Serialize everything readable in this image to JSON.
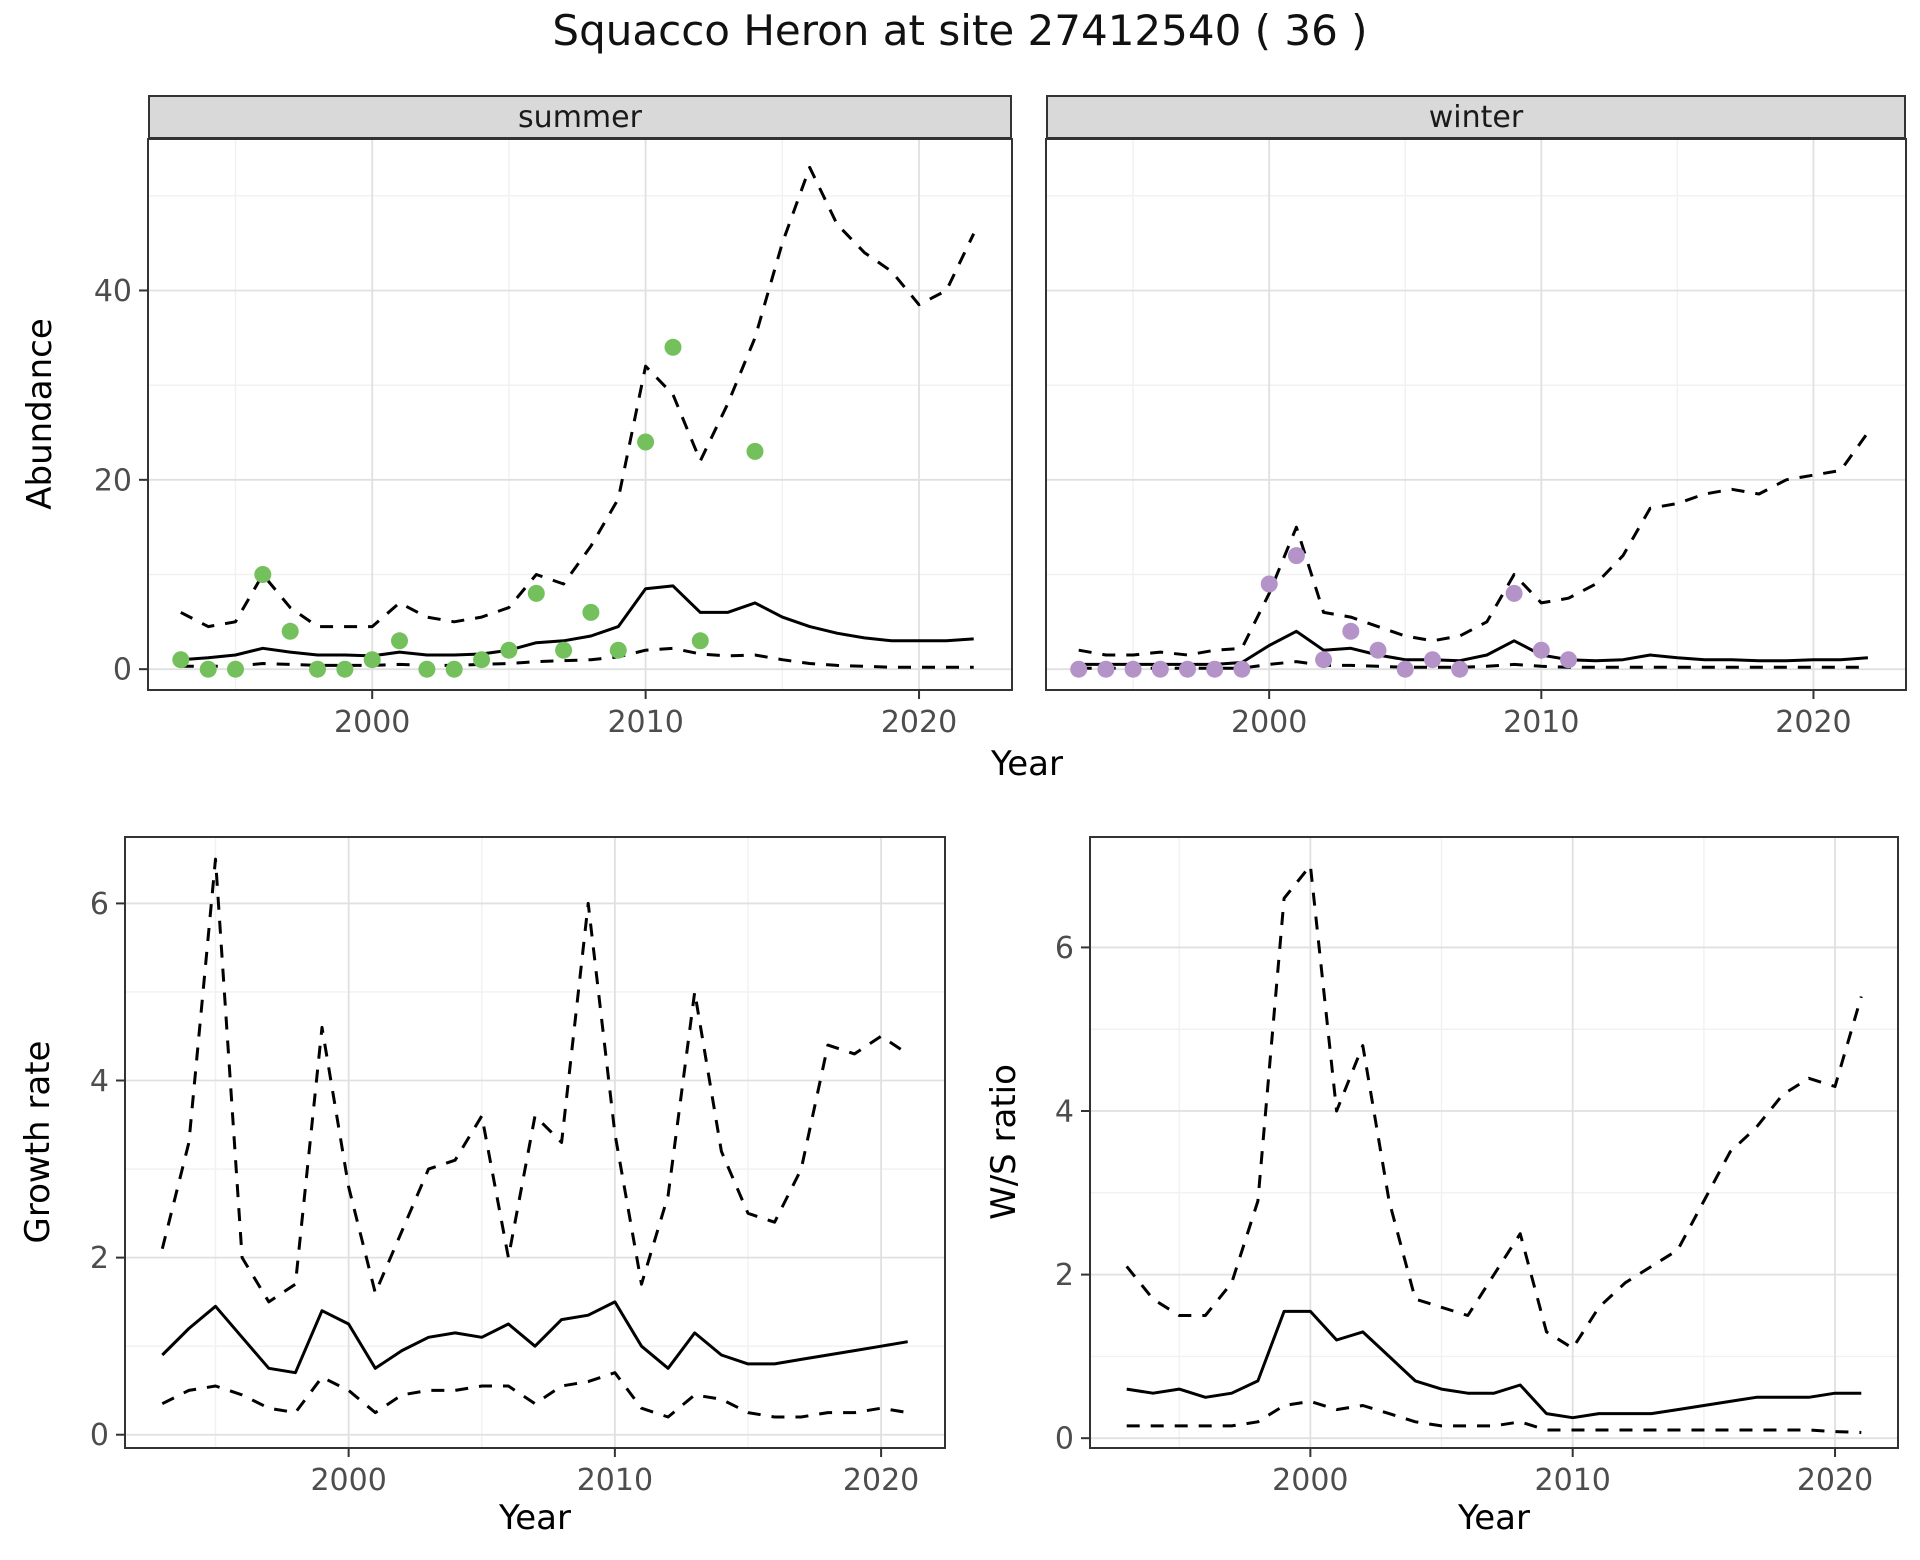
{
  "title": "Squacco Heron at site 27412540 ( 36 )",
  "facets": [
    {
      "label": "summer"
    },
    {
      "label": "winter"
    }
  ],
  "axis_labels": {
    "year": "Year",
    "abundance": "Abundance",
    "growth_rate": "Growth rate",
    "ws_ratio": "W/S ratio"
  },
  "colors": {
    "summer_points": "#73c05c",
    "winter_points": "#b493c8",
    "line": "#000000",
    "grid_major": "#e0e0e0",
    "grid_minor": "#f1f1f1",
    "strip_bg": "#d9d9d9",
    "panel_border": "#333333",
    "axis_text": "#4d4d4d"
  },
  "chart_data": [
    {
      "id": "abundance_summer",
      "type": "line",
      "facet": "summer",
      "xlabel": "Year",
      "ylabel": "Abundance",
      "xlim": [
        1991.8,
        2023.4
      ],
      "ylim": [
        -2.2,
        56
      ],
      "xticks": [
        2000,
        2010,
        2020
      ],
      "yticks": [
        0,
        20,
        40
      ],
      "x": [
        1993,
        1994,
        1995,
        1996,
        1997,
        1998,
        1999,
        2000,
        2001,
        2002,
        2003,
        2004,
        2005,
        2006,
        2007,
        2008,
        2009,
        2010,
        2011,
        2012,
        2013,
        2014,
        2015,
        2016,
        2017,
        2018,
        2019,
        2020,
        2021,
        2022
      ],
      "series": [
        {
          "name": "fit",
          "style": "solid",
          "values": [
            1.0,
            1.2,
            1.5,
            2.2,
            1.8,
            1.5,
            1.5,
            1.4,
            1.8,
            1.5,
            1.5,
            1.6,
            2.0,
            2.8,
            3.0,
            3.5,
            4.5,
            8.5,
            8.8,
            6.0,
            6.0,
            7.0,
            5.5,
            4.5,
            3.8,
            3.3,
            3.0,
            3.0,
            3.0,
            3.2
          ]
        },
        {
          "name": "upper",
          "style": "dashed",
          "values": [
            6.0,
            4.5,
            5.0,
            10.0,
            6.5,
            4.5,
            4.5,
            4.5,
            7.0,
            5.5,
            5.0,
            5.5,
            6.5,
            10.0,
            9.0,
            13.0,
            18.0,
            32.0,
            29.0,
            22.0,
            28.0,
            35.0,
            45.0,
            53.0,
            47.0,
            44.0,
            42.0,
            38.5,
            40.0,
            46.0
          ]
        },
        {
          "name": "lower",
          "style": "dashed",
          "values": [
            0.3,
            0.3,
            0.3,
            0.6,
            0.5,
            0.4,
            0.4,
            0.4,
            0.5,
            0.4,
            0.4,
            0.5,
            0.6,
            0.8,
            0.9,
            1.0,
            1.3,
            2.0,
            2.2,
            1.6,
            1.4,
            1.5,
            1.0,
            0.6,
            0.4,
            0.3,
            0.2,
            0.2,
            0.2,
            0.2
          ]
        }
      ],
      "points": {
        "name": "observed",
        "color_key": "summer_points",
        "x": [
          1993,
          1994,
          1995,
          1996,
          1997,
          1998,
          1999,
          2000,
          2001,
          2002,
          2003,
          2004,
          2005,
          2006,
          2007,
          2008,
          2009,
          2010,
          2011,
          2012,
          2014
        ],
        "y": [
          1,
          0,
          0,
          10,
          4,
          0,
          0,
          1,
          3,
          0,
          0,
          1,
          2,
          8,
          2,
          6,
          2,
          24,
          34,
          3,
          23
        ]
      }
    },
    {
      "id": "abundance_winter",
      "type": "line",
      "facet": "winter",
      "xlabel": "Year",
      "ylabel": "Abundance",
      "xlim": [
        1991.8,
        2023.4
      ],
      "ylim": [
        -2.2,
        56
      ],
      "xticks": [
        2000,
        2010,
        2020
      ],
      "yticks": [
        0,
        20,
        40
      ],
      "x": [
        1993,
        1994,
        1995,
        1996,
        1997,
        1998,
        1999,
        2000,
        2001,
        2002,
        2003,
        2004,
        2005,
        2006,
        2007,
        2008,
        2009,
        2010,
        2011,
        2012,
        2013,
        2014,
        2015,
        2016,
        2017,
        2018,
        2019,
        2020,
        2021,
        2022
      ],
      "series": [
        {
          "name": "fit",
          "style": "solid",
          "values": [
            0.5,
            0.5,
            0.5,
            0.5,
            0.5,
            0.5,
            0.7,
            2.5,
            4.0,
            2.0,
            2.2,
            1.5,
            1.0,
            1.0,
            0.9,
            1.5,
            3.0,
            1.5,
            1.0,
            0.9,
            1.0,
            1.5,
            1.2,
            1.0,
            1.0,
            0.9,
            0.9,
            1.0,
            1.0,
            1.2
          ]
        },
        {
          "name": "upper",
          "style": "dashed",
          "values": [
            2.0,
            1.5,
            1.5,
            1.8,
            1.5,
            2.0,
            2.2,
            8.0,
            15.0,
            6.0,
            5.5,
            4.5,
            3.5,
            3.0,
            3.5,
            5.0,
            10.0,
            7.0,
            7.5,
            9.0,
            12.0,
            17.0,
            17.5,
            18.5,
            19.0,
            18.5,
            20.0,
            20.5,
            21.0,
            25.0
          ]
        },
        {
          "name": "lower",
          "style": "dashed",
          "values": [
            0.1,
            0.1,
            0.1,
            0.1,
            0.1,
            0.1,
            0.1,
            0.5,
            0.8,
            0.4,
            0.4,
            0.3,
            0.2,
            0.2,
            0.2,
            0.3,
            0.5,
            0.3,
            0.2,
            0.2,
            0.2,
            0.2,
            0.2,
            0.2,
            0.2,
            0.2,
            0.2,
            0.2,
            0.2,
            0.2
          ]
        }
      ],
      "points": {
        "name": "observed",
        "color_key": "winter_points",
        "x": [
          1993,
          1994,
          1995,
          1996,
          1997,
          1998,
          1999,
          2000,
          2001,
          2002,
          2003,
          2004,
          2005,
          2006,
          2007,
          2009,
          2010,
          2011
        ],
        "y": [
          0,
          0,
          0,
          0,
          0,
          0,
          0,
          9,
          12,
          1,
          4,
          2,
          0,
          1,
          0,
          8,
          2,
          1
        ]
      }
    },
    {
      "id": "growth_rate",
      "type": "line",
      "facet": null,
      "xlabel": "Year",
      "ylabel": "Growth rate",
      "xlim": [
        1991.6,
        2022.4
      ],
      "ylim": [
        -0.15,
        6.75
      ],
      "xticks": [
        2000,
        2010,
        2020
      ],
      "yticks": [
        0,
        2,
        4,
        6
      ],
      "x": [
        1993,
        1994,
        1995,
        1996,
        1997,
        1998,
        1999,
        2000,
        2001,
        2002,
        2003,
        2004,
        2005,
        2006,
        2007,
        2008,
        2009,
        2010,
        2011,
        2012,
        2013,
        2014,
        2015,
        2016,
        2017,
        2018,
        2019,
        2020,
        2021
      ],
      "series": [
        {
          "name": "fit",
          "style": "solid",
          "values": [
            0.9,
            1.2,
            1.45,
            1.1,
            0.75,
            0.7,
            1.4,
            1.25,
            0.75,
            0.95,
            1.1,
            1.15,
            1.1,
            1.25,
            1.0,
            1.3,
            1.35,
            1.5,
            1.0,
            0.75,
            1.15,
            0.9,
            0.8,
            0.8,
            0.85,
            0.9,
            0.95,
            1.0,
            1.05
          ]
        },
        {
          "name": "upper",
          "style": "dashed",
          "values": [
            2.1,
            3.3,
            6.5,
            2.0,
            1.5,
            1.7,
            4.6,
            2.8,
            1.6,
            2.3,
            3.0,
            3.1,
            3.6,
            2.0,
            3.6,
            3.3,
            6.0,
            3.4,
            1.7,
            2.7,
            5.0,
            3.2,
            2.5,
            2.4,
            3.0,
            4.4,
            4.3,
            4.5,
            4.3
          ]
        },
        {
          "name": "lower",
          "style": "dashed",
          "values": [
            0.35,
            0.5,
            0.55,
            0.45,
            0.3,
            0.25,
            0.65,
            0.5,
            0.25,
            0.45,
            0.5,
            0.5,
            0.55,
            0.55,
            0.35,
            0.55,
            0.6,
            0.7,
            0.3,
            0.2,
            0.45,
            0.4,
            0.25,
            0.2,
            0.2,
            0.25,
            0.25,
            0.3,
            0.25
          ]
        }
      ],
      "points": null
    },
    {
      "id": "ws_ratio",
      "type": "line",
      "facet": null,
      "xlabel": "Year",
      "ylabel": "W/S ratio",
      "xlim": [
        1991.6,
        2022.4
      ],
      "ylim": [
        -0.12,
        7.35
      ],
      "xticks": [
        2000,
        2010,
        2020
      ],
      "yticks": [
        0,
        2,
        4,
        6
      ],
      "x": [
        1993,
        1994,
        1995,
        1996,
        1997,
        1998,
        1999,
        2000,
        2001,
        2002,
        2003,
        2004,
        2005,
        2006,
        2007,
        2008,
        2009,
        2010,
        2011,
        2012,
        2013,
        2014,
        2015,
        2016,
        2017,
        2018,
        2019,
        2020,
        2021
      ],
      "series": [
        {
          "name": "fit",
          "style": "solid",
          "values": [
            0.6,
            0.55,
            0.6,
            0.5,
            0.55,
            0.7,
            1.55,
            1.55,
            1.2,
            1.3,
            1.0,
            0.7,
            0.6,
            0.55,
            0.55,
            0.65,
            0.3,
            0.25,
            0.3,
            0.3,
            0.3,
            0.35,
            0.4,
            0.45,
            0.5,
            0.5,
            0.5,
            0.55,
            0.55
          ]
        },
        {
          "name": "upper",
          "style": "dashed",
          "values": [
            2.1,
            1.7,
            1.5,
            1.5,
            1.9,
            2.9,
            6.6,
            7.0,
            4.0,
            4.8,
            2.9,
            1.7,
            1.6,
            1.5,
            2.0,
            2.5,
            1.3,
            1.1,
            1.6,
            1.9,
            2.1,
            2.3,
            2.9,
            3.5,
            3.8,
            4.2,
            4.4,
            4.3,
            5.4
          ]
        },
        {
          "name": "lower",
          "style": "dashed",
          "values": [
            0.15,
            0.15,
            0.15,
            0.15,
            0.15,
            0.2,
            0.4,
            0.45,
            0.35,
            0.4,
            0.3,
            0.2,
            0.15,
            0.15,
            0.15,
            0.2,
            0.1,
            0.1,
            0.1,
            0.1,
            0.1,
            0.1,
            0.1,
            0.1,
            0.1,
            0.1,
            0.1,
            0.08,
            0.07
          ]
        }
      ],
      "points": null
    }
  ]
}
